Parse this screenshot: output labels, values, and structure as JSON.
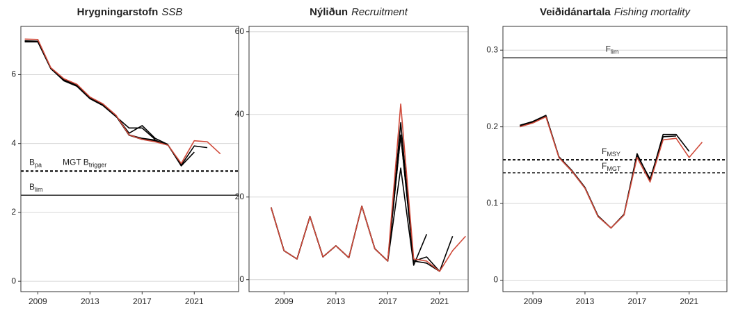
{
  "chart_data": [
    {
      "type": "line",
      "title": "Hrygningarstofn",
      "subtitle": "SSB",
      "x": [
        2008,
        2009,
        2010,
        2011,
        2012,
        2013,
        2014,
        2015,
        2016,
        2017,
        2018,
        2019,
        2020,
        2021,
        2022,
        2023
      ],
      "xlim": [
        2007.7,
        2024.4
      ],
      "xticks": [
        2009,
        2013,
        2017,
        2021
      ],
      "ylim": [
        -0.3,
        7.4
      ],
      "yticks": [
        0,
        2,
        4,
        6
      ],
      "grid": true,
      "series": [
        {
          "color": "#000000",
          "values": [
            6.98,
            6.97,
            6.18,
            5.82,
            5.66,
            5.3,
            5.1,
            4.78,
            4.45,
            4.45,
            4.12,
            null,
            null,
            null,
            null,
            null
          ]
        },
        {
          "color": "#000000",
          "values": [
            6.95,
            6.95,
            6.17,
            5.83,
            5.67,
            5.31,
            5.12,
            4.8,
            4.3,
            4.52,
            4.15,
            3.97,
            null,
            null,
            null,
            null
          ]
        },
        {
          "color": "#000000",
          "values": [
            6.97,
            6.97,
            6.18,
            5.84,
            5.68,
            5.32,
            5.13,
            4.8,
            4.25,
            4.15,
            4.1,
            3.95,
            3.38,
            null,
            null,
            null
          ]
        },
        {
          "color": "#000000",
          "values": [
            6.97,
            6.96,
            6.18,
            5.84,
            5.68,
            5.32,
            5.13,
            4.8,
            4.25,
            4.13,
            4.08,
            3.95,
            3.35,
            3.75,
            null,
            null
          ]
        },
        {
          "color": "#000000",
          "values": [
            6.97,
            6.96,
            6.18,
            5.85,
            5.69,
            5.33,
            5.14,
            4.8,
            4.24,
            4.12,
            4.06,
            3.95,
            3.37,
            3.93,
            3.88,
            null
          ]
        },
        {
          "color": "#d04a3a",
          "values": [
            7.03,
            7.02,
            6.2,
            5.88,
            5.72,
            5.35,
            5.15,
            4.82,
            4.25,
            4.12,
            4.05,
            3.95,
            3.42,
            4.08,
            4.05,
            3.7
          ]
        }
      ],
      "hlines": [
        {
          "value": 3.2,
          "label": "B",
          "subscript": "pa",
          "style": "dashed"
        },
        {
          "value": 3.2,
          "label": "MGT B",
          "subscript": "trigger",
          "style": "dashed"
        },
        {
          "value": 2.5,
          "label": "B",
          "subscript": "lim",
          "style": "solid"
        }
      ]
    },
    {
      "type": "line",
      "title": "Nýliðun",
      "subtitle": "Recruitment",
      "x": [
        2008,
        2009,
        2010,
        2011,
        2012,
        2013,
        2014,
        2015,
        2016,
        2017,
        2018,
        2019,
        2020,
        2021,
        2022,
        2023
      ],
      "xlim": [
        2006.3,
        2023.2
      ],
      "xticks": [
        2009,
        2013,
        2017,
        2021
      ],
      "ylim": [
        -2.9,
        61.3
      ],
      "yticks": [
        0,
        20,
        40,
        60
      ],
      "grid": true,
      "series": [
        {
          "color": "#000000",
          "values": [
            17.5,
            7,
            5,
            15.3,
            5.5,
            8.2,
            5.3,
            17.8,
            7.5,
            4.5,
            35,
            4,
            null,
            null,
            null,
            null
          ]
        },
        {
          "color": "#000000",
          "values": [
            17.5,
            7,
            5,
            15.3,
            5.5,
            8.2,
            5.3,
            17.8,
            7.5,
            4.5,
            27,
            3.5,
            11,
            null,
            null,
            null
          ]
        },
        {
          "color": "#000000",
          "values": [
            17.5,
            7,
            5,
            15.3,
            5.5,
            8.2,
            5.3,
            17.8,
            7.5,
            4.5,
            35,
            4.5,
            5.5,
            2,
            null,
            null
          ]
        },
        {
          "color": "#000000",
          "values": [
            17.5,
            7,
            5,
            15.3,
            5.5,
            8.2,
            5.3,
            17.8,
            7.5,
            4.5,
            38,
            4.5,
            4,
            2,
            10.5,
            null
          ]
        },
        {
          "color": "#d04a3a",
          "values": [
            17.5,
            7,
            5,
            15.3,
            5.5,
            8.2,
            5.3,
            17.8,
            7.5,
            4.5,
            42.5,
            5,
            4.5,
            2,
            7,
            10.5
          ]
        }
      ],
      "hlines": []
    },
    {
      "type": "line",
      "title": "Veiðidánartala",
      "subtitle": "Fishing mortality",
      "x": [
        2008,
        2009,
        2010,
        2011,
        2012,
        2013,
        2014,
        2015,
        2016,
        2017,
        2018,
        2019,
        2020,
        2021,
        2022,
        2023
      ],
      "xlim": [
        2006.7,
        2023.9
      ],
      "xticks": [
        2009,
        2013,
        2017,
        2021
      ],
      "ylim": [
        -0.015,
        0.331
      ],
      "yticks": [
        0.0,
        0.1,
        0.2,
        0.3
      ],
      "grid": true,
      "series": [
        {
          "color": "#000000",
          "values": [
            0.202,
            0.207,
            0.215,
            0.161,
            0.143,
            0.121,
            0.084,
            0.068,
            0.086,
            0.165,
            0.13,
            0.19,
            0.19,
            0.168,
            null,
            null
          ]
        },
        {
          "color": "#000000",
          "values": [
            0.201,
            0.206,
            0.214,
            0.16,
            0.142,
            0.12,
            0.083,
            0.068,
            0.085,
            0.163,
            0.132,
            0.187,
            0.188,
            null,
            null,
            null
          ]
        },
        {
          "color": "#d04a3a",
          "values": [
            0.2,
            0.205,
            0.213,
            0.16,
            0.142,
            0.12,
            0.083,
            0.068,
            0.085,
            0.16,
            0.128,
            0.183,
            0.185,
            0.16,
            0.18,
            null
          ]
        }
      ],
      "hlines": [
        {
          "value": 0.29,
          "label": "F",
          "subscript": "lim",
          "style": "solid"
        },
        {
          "value": 0.157,
          "label": "F",
          "subscript": "MSY",
          "style": "dashed"
        },
        {
          "value": 0.14,
          "label": "F",
          "subscript": "MGT",
          "style": "dashed-thin"
        }
      ]
    }
  ]
}
